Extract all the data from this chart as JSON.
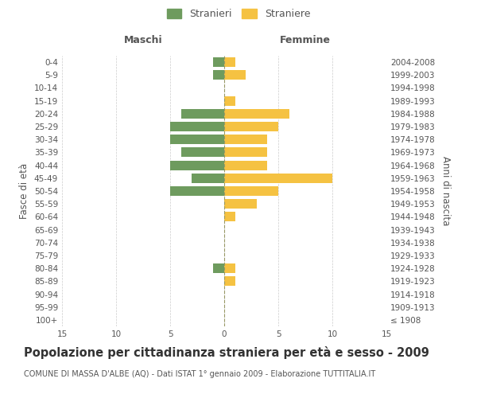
{
  "age_groups": [
    "100+",
    "95-99",
    "90-94",
    "85-89",
    "80-84",
    "75-79",
    "70-74",
    "65-69",
    "60-64",
    "55-59",
    "50-54",
    "45-49",
    "40-44",
    "35-39",
    "30-34",
    "25-29",
    "20-24",
    "15-19",
    "10-14",
    "5-9",
    "0-4"
  ],
  "birth_years": [
    "≤ 1908",
    "1909-1913",
    "1914-1918",
    "1919-1923",
    "1924-1928",
    "1929-1933",
    "1934-1938",
    "1939-1943",
    "1944-1948",
    "1949-1953",
    "1954-1958",
    "1959-1963",
    "1964-1968",
    "1969-1973",
    "1974-1978",
    "1979-1983",
    "1984-1988",
    "1989-1993",
    "1994-1998",
    "1999-2003",
    "2004-2008"
  ],
  "males": [
    0,
    0,
    0,
    0,
    1,
    0,
    0,
    0,
    0,
    0,
    5,
    3,
    5,
    4,
    5,
    5,
    4,
    0,
    0,
    1,
    1
  ],
  "females": [
    0,
    0,
    0,
    1,
    1,
    0,
    0,
    0,
    1,
    3,
    5,
    10,
    4,
    4,
    4,
    5,
    6,
    1,
    0,
    2,
    1
  ],
  "male_color": "#6e9b5e",
  "female_color": "#f5c242",
  "xlim": 15,
  "title": "Popolazione per cittadinanza straniera per età e sesso - 2009",
  "subtitle": "COMUNE DI MASSA D'ALBE (AQ) - Dati ISTAT 1° gennaio 2009 - Elaborazione TUTTITALIA.IT",
  "ylabel_left": "Fasce di età",
  "ylabel_right": "Anni di nascita",
  "legend_male": "Stranieri",
  "legend_female": "Straniere",
  "header_left": "Maschi",
  "header_right": "Femmine",
  "bg_color": "#ffffff",
  "grid_color": "#cccccc",
  "text_color": "#555555",
  "tick_fontsize": 7.5,
  "title_fontsize": 10.5,
  "subtitle_fontsize": 7.0
}
